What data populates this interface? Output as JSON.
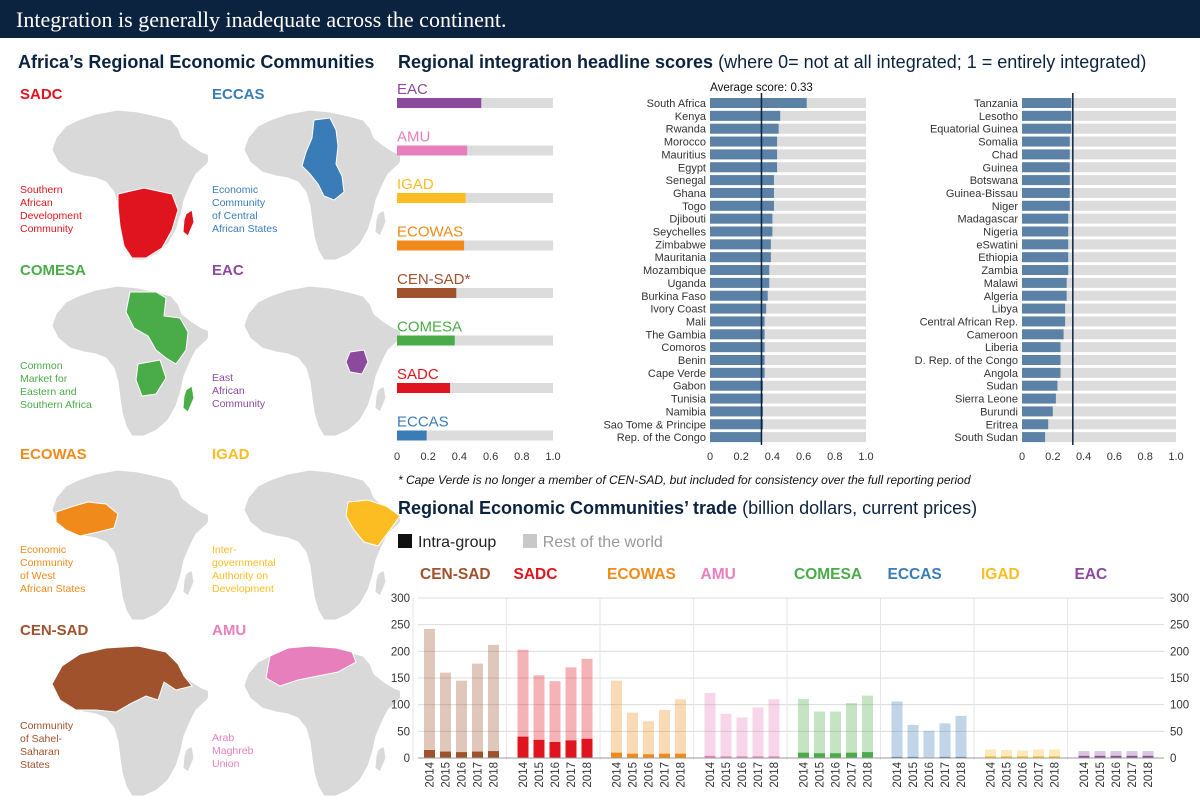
{
  "banner": {
    "title": "Integration is generally inadequate across the continent."
  },
  "maps": {
    "title": "Africa’s Regional Economic Communities",
    "items": [
      {
        "abbr": "SADC",
        "desc": [
          "Southern",
          "African",
          "Development",
          "Community"
        ],
        "color": "#e0141e"
      },
      {
        "abbr": "ECCAS",
        "desc": [
          "Economic",
          "Community",
          "of Central",
          "African States"
        ],
        "color": "#3a7cb8"
      },
      {
        "abbr": "COMESA",
        "desc": [
          "Common",
          "Market for",
          "Eastern and",
          "Southern Africa"
        ],
        "color": "#4aac48"
      },
      {
        "abbr": "EAC",
        "desc": [
          "East",
          "African",
          "Community"
        ],
        "color": "#8b4a9c"
      },
      {
        "abbr": "ECOWAS",
        "desc": [
          "Economic",
          "Community",
          "of West",
          "African States"
        ],
        "color": "#f08a1a"
      },
      {
        "abbr": "IGAD",
        "desc": [
          "Inter-",
          "governmental",
          "Authority on",
          "Development"
        ],
        "color": "#fbbd22"
      },
      {
        "abbr": "CEN-SAD",
        "desc": [
          "Community",
          "of Sahel-",
          "Saharan",
          "States"
        ],
        "color": "#a0522d"
      },
      {
        "abbr": "AMU",
        "desc": [
          "Arab",
          "Maghreb",
          "Union"
        ],
        "color": "#e77fbc"
      }
    ]
  },
  "scores": {
    "title": "Regional integration headline scores",
    "subtitle": " (where 0= not at all integrated; 1 = entirely integrated)",
    "average_label": "Average score: 0.33",
    "footnote": "* Cape Verde is no longer a member of CEN-SAD, but included for consistency over the full reporting period",
    "xticks": [
      "0",
      "0.2",
      "0.4",
      "0.6",
      "0.8",
      "1.0"
    ]
  },
  "trade": {
    "title": "Regional Economic Communities’ trade",
    "subtitle": " (billion dollars, current prices)",
    "legend_intra": "Intra-group",
    "legend_rest": "Rest of the world",
    "years": [
      "2014",
      "2015",
      "2016",
      "2017",
      "2018"
    ],
    "yticks": [
      "0",
      "50",
      "100",
      "150",
      "200",
      "250",
      "300"
    ]
  },
  "chart_data": [
    {
      "type": "bar",
      "title": "Regional integration headline scores — RECs",
      "categories": [
        "EAC",
        "AMU",
        "IGAD",
        "ECOWAS",
        "CEN-SAD*",
        "COMESA",
        "SADC",
        "ECCAS"
      ],
      "values": [
        0.54,
        0.45,
        0.44,
        0.43,
        0.38,
        0.37,
        0.34,
        0.19
      ],
      "colors": [
        "#8b4a9c",
        "#e77fbc",
        "#fbbd22",
        "#f08a1a",
        "#a0522d",
        "#4aac48",
        "#e0141e",
        "#3a7cb8"
      ],
      "xlim": [
        0,
        1
      ]
    },
    {
      "type": "bar",
      "title": "Regional integration headline scores — countries (1)",
      "categories": [
        "South Africa",
        "Kenya",
        "Rwanda",
        "Morocco",
        "Mauritius",
        "Egypt",
        "Senegal",
        "Ghana",
        "Togo",
        "Djibouti",
        "Seychelles",
        "Zimbabwe",
        "Mauritania",
        "Mozambique",
        "Uganda",
        "Burkina Faso",
        "Ivory Coast",
        "Mali",
        "The Gambia",
        "Comoros",
        "Benin",
        "Cape Verde",
        "Gabon",
        "Tunisia",
        "Namibia",
        "Sao Tome & Principe",
        "Rep. of the Congo"
      ],
      "values": [
        0.62,
        0.45,
        0.44,
        0.43,
        0.43,
        0.43,
        0.41,
        0.41,
        0.41,
        0.4,
        0.4,
        0.39,
        0.39,
        0.38,
        0.38,
        0.37,
        0.36,
        0.35,
        0.35,
        0.35,
        0.35,
        0.35,
        0.34,
        0.34,
        0.34,
        0.34,
        0.33
      ],
      "average": 0.33,
      "xlim": [
        0,
        1
      ]
    },
    {
      "type": "bar",
      "title": "Regional integration headline scores — countries (2)",
      "categories": [
        "Tanzania",
        "Lesotho",
        "Equatorial Guinea",
        "Somalia",
        "Chad",
        "Guinea",
        "Botswana",
        "Guinea-Bissau",
        "Niger",
        "Madagascar",
        "Nigeria",
        "eSwatini",
        "Ethiopia",
        "Zambia",
        "Malawi",
        "Algeria",
        "Libya",
        "Central African Rep.",
        "Cameroon",
        "Liberia",
        "D. Rep. of the Congo",
        "Angola",
        "Sudan",
        "Sierra Leone",
        "Burundi",
        "Eritrea",
        "South Sudan"
      ],
      "values": [
        0.32,
        0.32,
        0.32,
        0.31,
        0.31,
        0.31,
        0.31,
        0.31,
        0.31,
        0.3,
        0.3,
        0.3,
        0.3,
        0.3,
        0.29,
        0.29,
        0.28,
        0.28,
        0.27,
        0.25,
        0.25,
        0.25,
        0.23,
        0.22,
        0.2,
        0.17,
        0.15
      ],
      "average": 0.33,
      "xlim": [
        0,
        1
      ]
    },
    {
      "type": "bar",
      "title": "Regional Economic Communities’ trade",
      "ylim": [
        0,
        300
      ],
      "categories": [
        "2014",
        "2015",
        "2016",
        "2017",
        "2018"
      ],
      "groups": [
        {
          "name": "CEN-SAD",
          "color": "#a0522d",
          "intra": [
            15,
            12,
            11,
            12,
            13
          ],
          "total": [
            242,
            160,
            145,
            177,
            212
          ]
        },
        {
          "name": "SADC",
          "color": "#e0141e",
          "intra": [
            40,
            34,
            30,
            33,
            36
          ],
          "total": [
            203,
            155,
            144,
            170,
            186
          ]
        },
        {
          "name": "ECOWAS",
          "color": "#f08a1a",
          "intra": [
            10,
            8,
            7,
            8,
            8
          ],
          "total": [
            145,
            85,
            69,
            90,
            110
          ]
        },
        {
          "name": "AMU",
          "color": "#e77fbc",
          "intra": [
            4,
            3,
            3,
            3,
            3
          ],
          "total": [
            122,
            83,
            76,
            95,
            110
          ]
        },
        {
          "name": "COMESA",
          "color": "#4aac48",
          "intra": [
            10,
            9,
            9,
            10,
            11
          ],
          "total": [
            111,
            87,
            87,
            103,
            117
          ]
        },
        {
          "name": "ECCAS",
          "color": "#3a7cb8",
          "intra": [
            2,
            2,
            1,
            2,
            2
          ],
          "total": [
            106,
            62,
            51,
            65,
            79
          ]
        },
        {
          "name": "IGAD",
          "color": "#fbbd22",
          "intra": [
            3,
            3,
            3,
            3,
            3
          ],
          "total": [
            16,
            15,
            14,
            16,
            16
          ]
        },
        {
          "name": "EAC",
          "color": "#8b4a9c",
          "intra": [
            4,
            4,
            4,
            4,
            4
          ],
          "total": [
            13,
            13,
            13,
            13,
            13
          ]
        }
      ]
    }
  ]
}
